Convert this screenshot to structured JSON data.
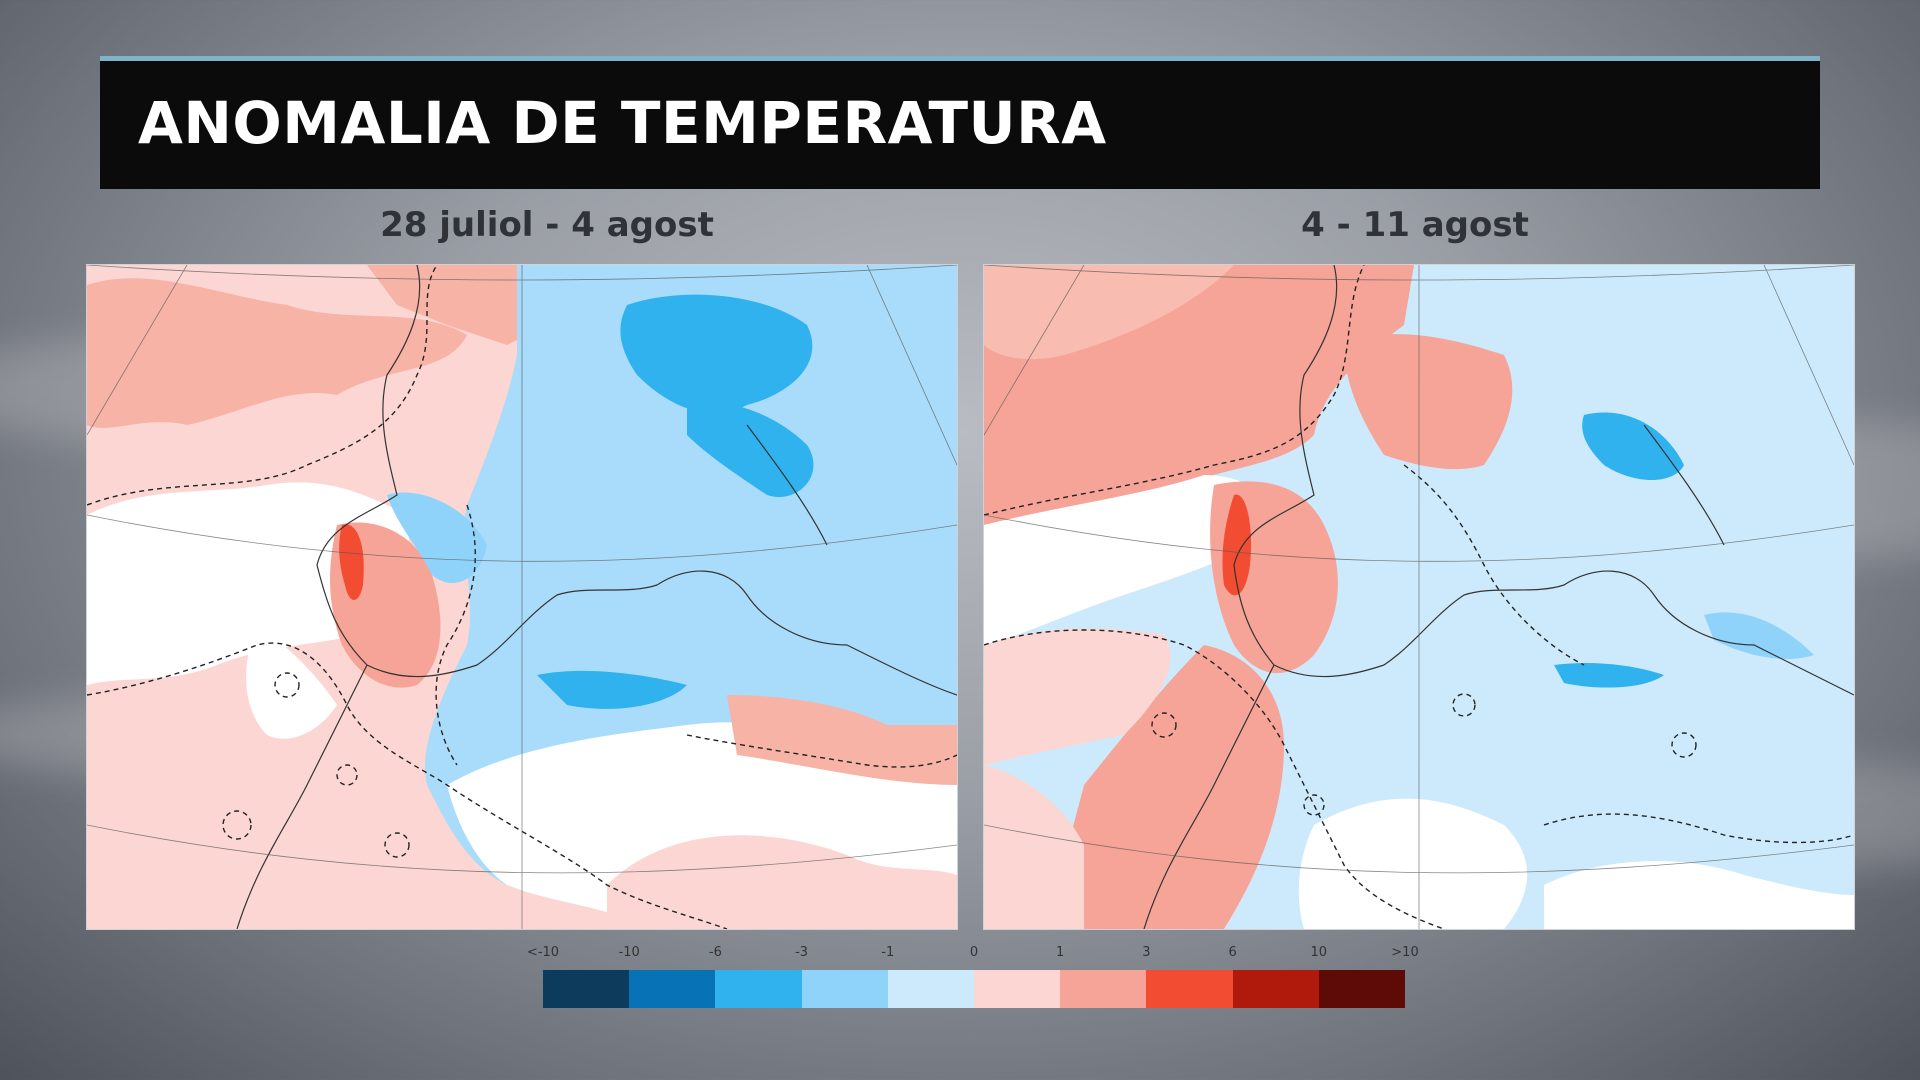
{
  "title": "ANOMALIA DE TEMPERATURA",
  "panels": [
    {
      "label": "28 juliol - 4 agost"
    },
    {
      "label": "4 - 11 agost"
    }
  ],
  "legend": {
    "ticks": [
      "<-10",
      "-10",
      "-6",
      "-3",
      "-1",
      "0",
      "1",
      "3",
      "6",
      "10",
      ">10"
    ],
    "colors": [
      "#0d3b5c",
      "#0872b6",
      "#2fb2ee",
      "#8fd3fa",
      "#cdeafc",
      "#fcd6d2",
      "#f6a497",
      "#f24d32",
      "#b01a0d",
      "#5e0b07"
    ]
  }
}
